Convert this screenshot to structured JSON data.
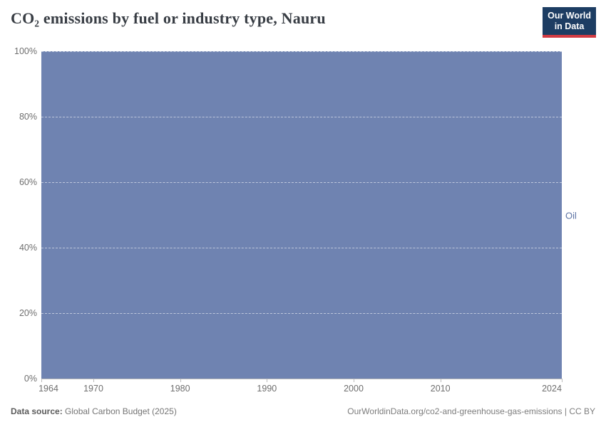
{
  "header": {
    "title": "CO₂ emissions by fuel or industry type, Nauru"
  },
  "logo": {
    "line1": "Our World",
    "line2": "in Data",
    "bg_color": "#1d3d63",
    "accent_color": "#d13b43"
  },
  "chart_data": {
    "type": "area",
    "stacking": "relative-100-percent",
    "title": "CO₂ emissions by fuel or industry type, Nauru",
    "xlabel": "",
    "ylabel": "",
    "xlim": [
      1964,
      2024
    ],
    "ylim": [
      0,
      100
    ],
    "x_ticks": [
      1964,
      1970,
      1980,
      1990,
      2000,
      2010,
      2024
    ],
    "y_ticks": [
      0,
      20,
      40,
      60,
      80,
      100
    ],
    "y_suffix": "%",
    "grid": "dashed horizontal gridlines at each y tick",
    "legend_position": "series label at right edge of plot",
    "series": [
      {
        "name": "Oil",
        "color": "#6f83b1",
        "label_color": "#5d74a5",
        "unit": "%",
        "x_range": [
          1964,
          2024
        ],
        "value_all_years": 100,
        "note": "Oil accounts for 100% of CO₂ emissions in every year shown (1964–2024), so the area fills the whole plot"
      }
    ]
  },
  "footer": {
    "source_label": "Data source:",
    "source_value": "Global Carbon Budget (2025)",
    "attribution": "OurWorldinData.org/co2-and-greenhouse-gas-emissions | CC BY"
  }
}
